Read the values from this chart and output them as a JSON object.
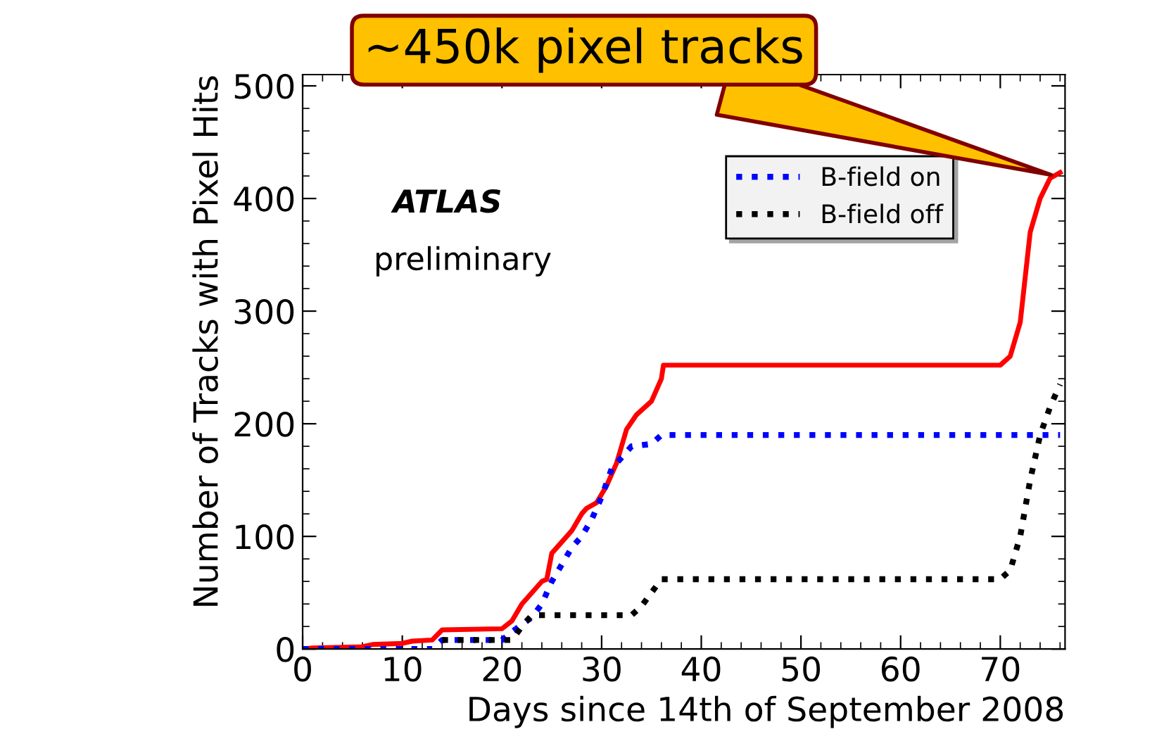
{
  "chart_data": {
    "type": "line",
    "xlabel": "Days since 14th of September 2008",
    "ylabel": "Number of Tracks with Pixel Hits",
    "xlim": [
      0,
      76.5
    ],
    "ylim": [
      0,
      510
    ],
    "xticks": [
      0,
      10,
      20,
      30,
      40,
      50,
      60,
      70
    ],
    "yticks": [
      0,
      100,
      200,
      300,
      400,
      500
    ],
    "grid": false,
    "legend": "top right",
    "marker": "none",
    "series": [
      {
        "color": "#ff0000",
        "line_style": "solid",
        "x": [
          0,
          1,
          6,
          7,
          10,
          11,
          13,
          14,
          20,
          21,
          22,
          23,
          24,
          24.5,
          25,
          26,
          27,
          28,
          28.5,
          29.5,
          30.5,
          31.5,
          32,
          32.5,
          33.5,
          35,
          36,
          36.2,
          70,
          71,
          72,
          72.5,
          73,
          74,
          75,
          76
        ],
        "values": [
          0,
          1,
          2,
          4,
          5,
          7,
          8,
          17,
          18,
          25,
          40,
          50,
          60,
          62,
          85,
          95,
          105,
          120,
          125,
          130,
          145,
          165,
          180,
          195,
          208,
          220,
          240,
          252,
          252,
          260,
          290,
          330,
          370,
          400,
          418,
          423
        ]
      },
      {
        "name": "B-field on",
        "color": "#0000ff",
        "line_style": "dotted",
        "x": [
          0,
          13,
          14,
          20,
          21,
          22,
          23,
          24,
          25,
          26,
          27,
          28,
          29,
          30,
          31,
          32,
          33,
          35,
          36,
          76
        ],
        "values": [
          0,
          0,
          8,
          8,
          15,
          22,
          28,
          40,
          60,
          75,
          90,
          100,
          115,
          135,
          160,
          170,
          180,
          182,
          190,
          190
        ]
      },
      {
        "name": "B-field off",
        "color": "#000000",
        "line_style": "dotted",
        "x": [
          14,
          21,
          22,
          23,
          33,
          34,
          35,
          36,
          70,
          71,
          72,
          73,
          74,
          75,
          76
        ],
        "values": [
          8,
          8,
          20,
          30,
          30,
          38,
          50,
          62,
          62,
          70,
          100,
          150,
          190,
          215,
          235
        ]
      }
    ],
    "annotations": [
      {
        "text": "~450k pixel tracks",
        "x": 75.5,
        "y": 420
      },
      "ATLAS",
      "preliminary"
    ]
  }
}
